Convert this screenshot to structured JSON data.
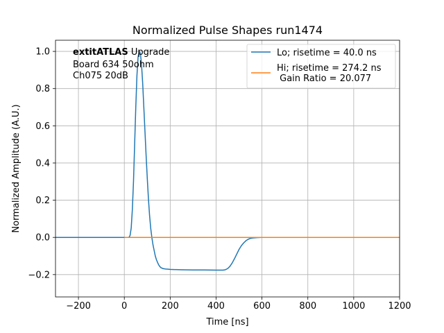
{
  "chart_data": {
    "type": "line",
    "title": "Normalized Pulse Shapes run1474",
    "xlabel": "Time [ns]",
    "ylabel": "Normalized Amplitude (A.U.)",
    "xlim": [
      -300,
      1200
    ],
    "ylim": [
      -0.32,
      1.06
    ],
    "grid": true,
    "x_ticks": [
      -200,
      0,
      200,
      400,
      600,
      800,
      1000,
      1200
    ],
    "x_tick_labels": [
      "−200",
      "0",
      "200",
      "400",
      "600",
      "800",
      "1000",
      "1200"
    ],
    "y_ticks": [
      -0.2,
      0.0,
      0.2,
      0.4,
      0.6,
      0.8,
      1.0
    ],
    "y_tick_labels": [
      "−0.2",
      "0.0",
      "0.2",
      "0.4",
      "0.6",
      "0.8",
      "1.0"
    ],
    "annotation": {
      "bold": "extitATLAS",
      "rest": " Upgrade",
      "line2": "Board 634 50ohm",
      "line3": "Ch075 20dB"
    },
    "legend_position": "top-right",
    "series": [
      {
        "name": "Lo; risetime = 40.0 ns",
        "color": "#1f77b4",
        "x": [
          -300,
          0,
          20,
          25,
          30,
          35,
          40,
          45,
          50,
          55,
          60,
          65,
          70,
          75,
          80,
          85,
          90,
          95,
          100,
          105,
          110,
          115,
          120,
          125,
          130,
          135,
          140,
          145,
          150,
          155,
          160,
          170,
          180,
          190,
          200,
          220,
          250,
          300,
          350,
          400,
          430,
          440,
          450,
          460,
          470,
          480,
          490,
          500,
          510,
          520,
          530,
          540,
          550,
          560,
          580,
          600,
          700,
          800,
          1000,
          1200
        ],
        "y": [
          0,
          0,
          0,
          0.01,
          0.05,
          0.15,
          0.3,
          0.5,
          0.7,
          0.87,
          0.97,
          1.0,
          0.99,
          0.93,
          0.83,
          0.7,
          0.57,
          0.44,
          0.32,
          0.21,
          0.12,
          0.05,
          0.0,
          -0.04,
          -0.07,
          -0.1,
          -0.12,
          -0.135,
          -0.148,
          -0.157,
          -0.163,
          -0.168,
          -0.17,
          -0.171,
          -0.172,
          -0.173,
          -0.174,
          -0.175,
          -0.175,
          -0.176,
          -0.176,
          -0.174,
          -0.168,
          -0.156,
          -0.138,
          -0.115,
          -0.09,
          -0.065,
          -0.045,
          -0.03,
          -0.018,
          -0.01,
          -0.005,
          -0.003,
          -0.001,
          0,
          0,
          0,
          0,
          0
        ]
      },
      {
        "name": "Hi; risetime = 274.2 ns\n Gain Ratio = 20.077",
        "color": "#ff7f0e",
        "x": [
          0,
          1200
        ],
        "y": [
          0,
          0
        ]
      }
    ]
  }
}
